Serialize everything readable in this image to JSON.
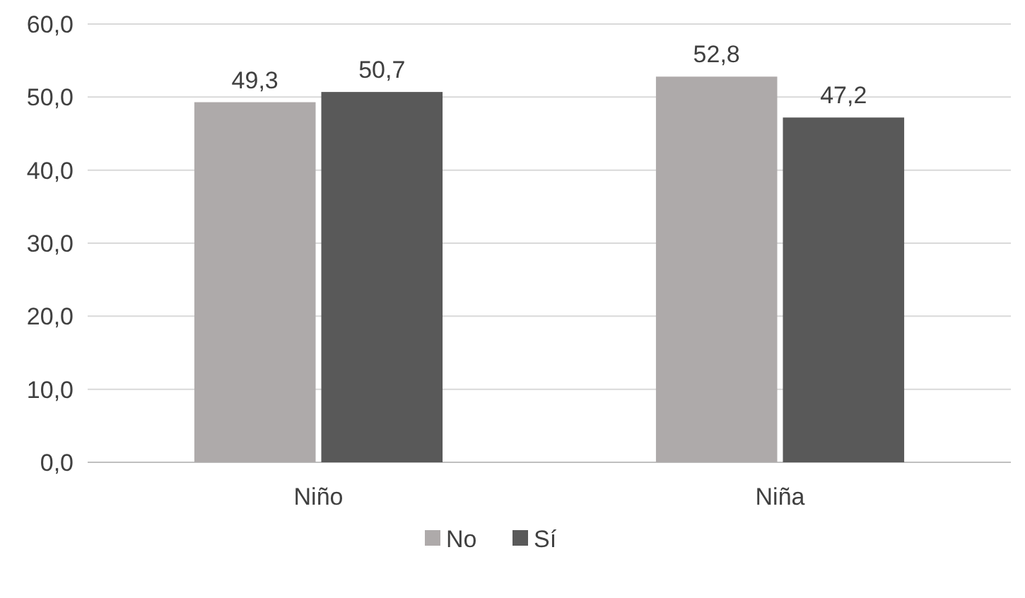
{
  "chart_data": {
    "type": "bar",
    "categories": [
      "Niño",
      "Niña"
    ],
    "series": [
      {
        "name": "No",
        "color": "#aeaaaa",
        "values": [
          49.3,
          52.8
        ],
        "value_labels": [
          "49,3",
          "52,8"
        ]
      },
      {
        "name": "Sí",
        "color": "#595959",
        "values": [
          50.7,
          47.2
        ],
        "value_labels": [
          "50,7",
          "47,2"
        ]
      }
    ],
    "ylim": [
      0,
      60
    ],
    "yticks": [
      {
        "value": 0,
        "label": "0,0"
      },
      {
        "value": 10,
        "label": "10,0"
      },
      {
        "value": 20,
        "label": "20,0"
      },
      {
        "value": 30,
        "label": "30,0"
      },
      {
        "value": 40,
        "label": "40,0"
      },
      {
        "value": 50,
        "label": "50,0"
      },
      {
        "value": 60,
        "label": "60,0"
      }
    ],
    "grid": "y",
    "legend": "bottom"
  }
}
